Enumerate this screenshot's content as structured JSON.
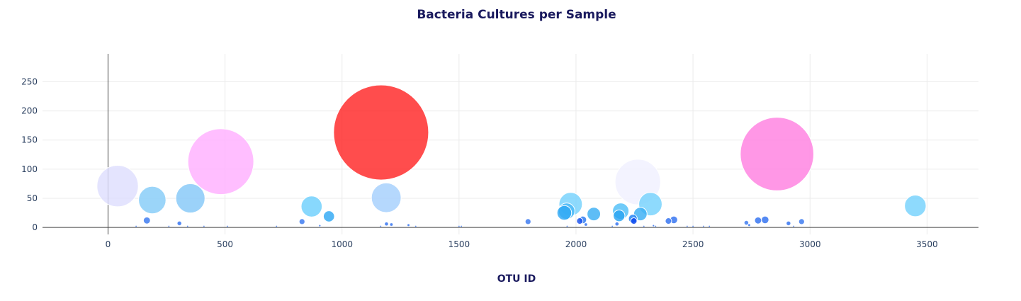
{
  "chart_data": {
    "type": "scatter",
    "title": "Bacteria Cultures per Sample",
    "xlabel": "OTU ID",
    "ylabel": "",
    "xlim": [
      -280,
      3720
    ],
    "ylim": [
      -12,
      298
    ],
    "xticks": [
      0,
      500,
      1000,
      1500,
      2000,
      2500,
      3000,
      3500
    ],
    "yticks": [
      0,
      50,
      100,
      150,
      200,
      250
    ],
    "grid": true,
    "points": [
      {
        "x": 1167,
        "y": 163,
        "size": 163,
        "color": "#ff2626"
      },
      {
        "x": 2859,
        "y": 126,
        "size": 126,
        "color": "#ff80e0"
      },
      {
        "x": 482,
        "y": 113,
        "size": 113,
        "color": "#ffb0ff"
      },
      {
        "x": 2264,
        "y": 78,
        "size": 78,
        "color": "#f0f0ff"
      },
      {
        "x": 41,
        "y": 71,
        "size": 71,
        "color": "#dedefe"
      },
      {
        "x": 1189,
        "y": 51,
        "size": 51,
        "color": "#a5d0fc"
      },
      {
        "x": 352,
        "y": 50,
        "size": 50,
        "color": "#85c8f8"
      },
      {
        "x": 189,
        "y": 47,
        "size": 47,
        "color": "#85ccf8"
      },
      {
        "x": 1977,
        "y": 40,
        "size": 40,
        "color": "#75d2fc"
      },
      {
        "x": 2318,
        "y": 40,
        "size": 40,
        "color": "#75d2fc"
      },
      {
        "x": 3450,
        "y": 37,
        "size": 37,
        "color": "#75d2fc"
      },
      {
        "x": 870,
        "y": 36,
        "size": 36,
        "color": "#6ed0fc"
      },
      {
        "x": 1960,
        "y": 28,
        "size": 28,
        "color": "#4ab8f6"
      },
      {
        "x": 2191,
        "y": 28,
        "size": 28,
        "color": "#50c0f8"
      },
      {
        "x": 1950,
        "y": 25,
        "size": 25,
        "color": "#30a8f4"
      },
      {
        "x": 2076,
        "y": 23,
        "size": 23,
        "color": "#3aaef4"
      },
      {
        "x": 2275,
        "y": 23,
        "size": 23,
        "color": "#3aaef4"
      },
      {
        "x": 2184,
        "y": 20,
        "size": 20,
        "color": "#2aa4f2"
      },
      {
        "x": 944,
        "y": 19,
        "size": 19,
        "color": "#30a8f4"
      },
      {
        "x": 2243,
        "y": 15,
        "size": 15,
        "color": "#1e80f4"
      },
      {
        "x": 2029,
        "y": 13,
        "size": 13,
        "color": "#2878f0"
      },
      {
        "x": 2808,
        "y": 13,
        "size": 13,
        "color": "#3070f0"
      },
      {
        "x": 2418,
        "y": 13,
        "size": 13,
        "color": "#3070f0"
      },
      {
        "x": 166,
        "y": 12,
        "size": 12,
        "color": "#3878f0"
      },
      {
        "x": 2778,
        "y": 12,
        "size": 12,
        "color": "#3070f0"
      },
      {
        "x": 2247,
        "y": 11,
        "size": 11,
        "color": "#0a46ee"
      },
      {
        "x": 2395,
        "y": 11,
        "size": 11,
        "color": "#3070f0"
      },
      {
        "x": 2016,
        "y": 11,
        "size": 11,
        "color": "#1a50ee"
      },
      {
        "x": 829,
        "y": 10,
        "size": 10,
        "color": "#3878f0"
      },
      {
        "x": 1795,
        "y": 10,
        "size": 10,
        "color": "#3878f0"
      },
      {
        "x": 2964,
        "y": 10,
        "size": 10,
        "color": "#3878f0"
      },
      {
        "x": 2728,
        "y": 8,
        "size": 8,
        "color": "#3878f0"
      },
      {
        "x": 305,
        "y": 7,
        "size": 7,
        "color": "#3070f0"
      },
      {
        "x": 2908,
        "y": 7,
        "size": 7,
        "color": "#3070f0"
      },
      {
        "x": 1190,
        "y": 6,
        "size": 6,
        "color": "#3070f0"
      },
      {
        "x": 2175,
        "y": 6,
        "size": 6,
        "color": "#3070f0"
      },
      {
        "x": 1211,
        "y": 5,
        "size": 5,
        "color": "#3070f0"
      },
      {
        "x": 2042,
        "y": 5,
        "size": 5,
        "color": "#3070f0"
      },
      {
        "x": 2740,
        "y": 4,
        "size": 4,
        "color": "#3070f0"
      },
      {
        "x": 1284,
        "y": 4,
        "size": 4,
        "color": "#3070f0"
      },
      {
        "x": 2331,
        "y": 3,
        "size": 3,
        "color": "#3070f0"
      },
      {
        "x": 905,
        "y": 3,
        "size": 3,
        "color": "#3070f0"
      },
      {
        "x": 2340,
        "y": 2,
        "size": 2,
        "color": "#3070f0"
      },
      {
        "x": 120,
        "y": 2,
        "size": 2,
        "color": "#3070f0"
      },
      {
        "x": 260,
        "y": 2,
        "size": 2,
        "color": "#3070f0"
      },
      {
        "x": 340,
        "y": 2,
        "size": 2,
        "color": "#3070f0"
      },
      {
        "x": 410,
        "y": 2,
        "size": 2,
        "color": "#3070f0"
      },
      {
        "x": 510,
        "y": 2,
        "size": 2,
        "color": "#3070f0"
      },
      {
        "x": 720,
        "y": 2,
        "size": 2,
        "color": "#3070f0"
      },
      {
        "x": 1165,
        "y": 2,
        "size": 2,
        "color": "#3070f0"
      },
      {
        "x": 1315,
        "y": 2,
        "size": 2,
        "color": "#3070f0"
      },
      {
        "x": 1500,
        "y": 2,
        "size": 2,
        "color": "#3070f0"
      },
      {
        "x": 1510,
        "y": 2,
        "size": 2,
        "color": "#3070f0"
      },
      {
        "x": 1962,
        "y": 2,
        "size": 2,
        "color": "#3070f0"
      },
      {
        "x": 2155,
        "y": 2,
        "size": 2,
        "color": "#3070f0"
      },
      {
        "x": 2290,
        "y": 2,
        "size": 2,
        "color": "#3070f0"
      },
      {
        "x": 2475,
        "y": 2,
        "size": 2,
        "color": "#3070f0"
      },
      {
        "x": 2500,
        "y": 2,
        "size": 2,
        "color": "#3070f0"
      },
      {
        "x": 2545,
        "y": 2,
        "size": 2,
        "color": "#3070f0"
      },
      {
        "x": 2570,
        "y": 2,
        "size": 2,
        "color": "#3070f0"
      },
      {
        "x": 2930,
        "y": 2,
        "size": 2,
        "color": "#3070f0"
      }
    ]
  }
}
